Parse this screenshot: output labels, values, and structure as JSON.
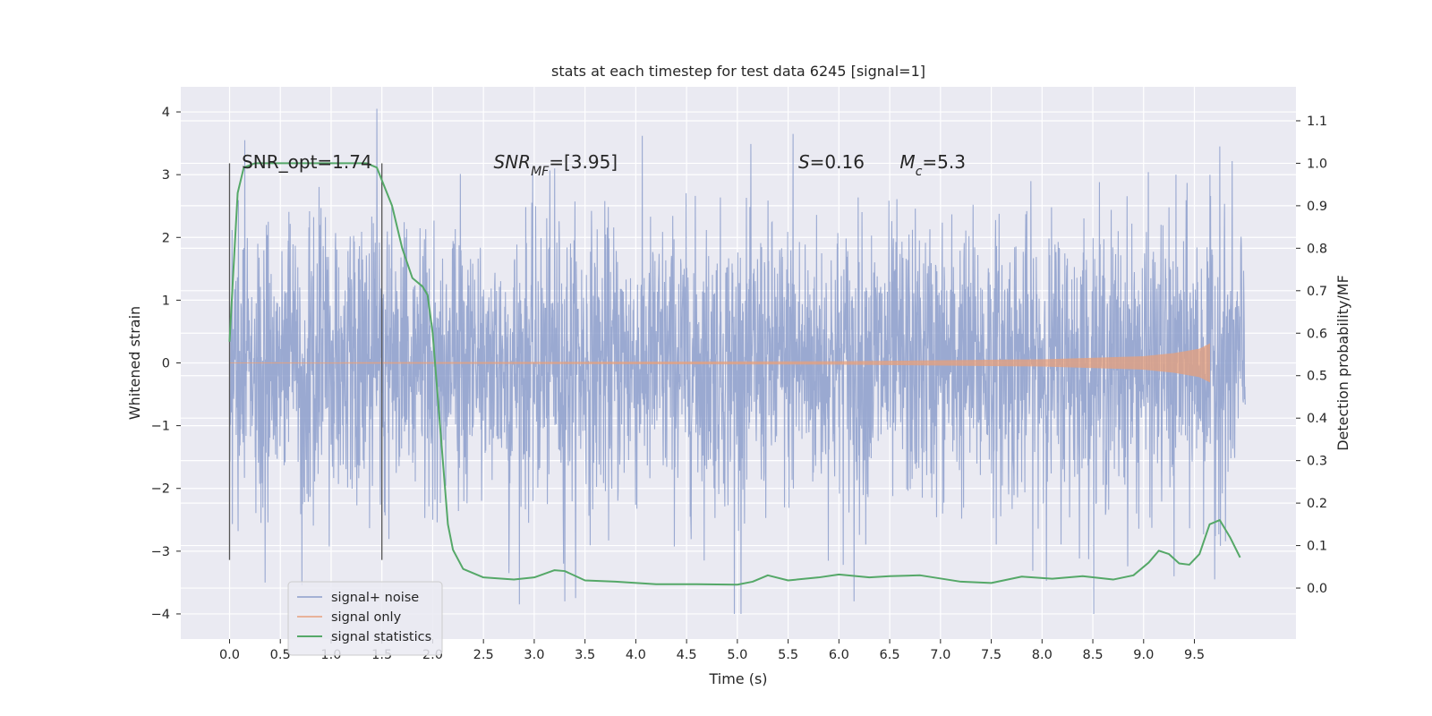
{
  "chart_data": {
    "type": "line",
    "title": "stats at each timestep for test data 6245 [signal=1]",
    "xlabel": "Time (s)",
    "ylabel": "Whitened strain",
    "y2label": "Detection probability/MF",
    "xlim": [
      -0.48,
      10.5
    ],
    "ylim": [
      -4.4,
      4.4
    ],
    "y2lim": [
      -0.12,
      1.18
    ],
    "x_ticks": [
      0.0,
      0.5,
      1.0,
      1.5,
      2.0,
      2.5,
      3.0,
      3.5,
      4.0,
      4.5,
      5.0,
      5.5,
      6.0,
      6.5,
      7.0,
      7.5,
      8.0,
      8.5,
      9.0,
      9.5
    ],
    "x_tick_labels": [
      "0.0",
      "0.5",
      "1.0",
      "1.5",
      "2.0",
      "2.5",
      "3.0",
      "3.5",
      "4.0",
      "4.5",
      "5.0",
      "5.5",
      "6.0",
      "6.5",
      "7.0",
      "7.5",
      "8.0",
      "8.5",
      "9.0",
      "9.5"
    ],
    "y_ticks": [
      4,
      3,
      2,
      1,
      0,
      -1,
      -2,
      -3,
      -4
    ],
    "y_tick_labels": [
      "4",
      "3",
      "2",
      "1",
      "0",
      "−1",
      "−2",
      "−3",
      "−4"
    ],
    "y2_ticks": [
      1.1,
      1.0,
      0.9,
      0.8,
      0.7,
      0.6,
      0.5,
      0.4,
      0.3,
      0.2,
      0.1,
      0.0
    ],
    "y2_tick_labels": [
      "1.1",
      "1.0",
      "0.9",
      "0.8",
      "0.7",
      "0.6",
      "0.5",
      "0.4",
      "0.3",
      "0.2",
      "0.1",
      "0.0"
    ],
    "grid": true,
    "legend_position": "bottom-left",
    "vertical_lines": [
      0.0,
      1.5
    ],
    "series": [
      {
        "name": "signal+ noise",
        "axis": "left",
        "color": "#8c9ecb",
        "description_values": {
          "x_start": 0.0,
          "x_end": 10.0,
          "typical_amplitude": 1.3,
          "extreme_range": [
            -4.0,
            4.1
          ]
        },
        "notable_peaks": [
          [
            0.15,
            3.55
          ],
          [
            0.35,
            -3.5
          ],
          [
            1.45,
            4.05
          ],
          [
            2.0,
            -2.5
          ],
          [
            2.75,
            -3.35
          ],
          [
            3.3,
            -3.8
          ],
          [
            3.2,
            3.1
          ],
          [
            4.97,
            -4.0
          ],
          [
            5.55,
            3.65
          ],
          [
            6.15,
            -3.8
          ],
          [
            9.3,
            -3.4
          ],
          [
            9.75,
            3.45
          ],
          [
            9.7,
            -3.45
          ]
        ]
      },
      {
        "name": "signal only",
        "axis": "left",
        "color": "#e7a07c",
        "points": [
          [
            0.0,
            0.0
          ],
          [
            6.0,
            0.02
          ],
          [
            8.0,
            0.05
          ],
          [
            9.0,
            0.1
          ],
          [
            9.3,
            0.15
          ],
          [
            9.55,
            0.22
          ],
          [
            9.65,
            0.3
          ]
        ]
      },
      {
        "name": "signal statistics",
        "axis": "right",
        "color": "#55a868",
        "points": [
          [
            0.0,
            0.58
          ],
          [
            0.05,
            0.8
          ],
          [
            0.08,
            0.93
          ],
          [
            0.14,
            0.99
          ],
          [
            0.25,
            1.0
          ],
          [
            0.6,
            1.0
          ],
          [
            1.0,
            1.0
          ],
          [
            1.35,
            1.0
          ],
          [
            1.45,
            0.99
          ],
          [
            1.5,
            0.96
          ],
          [
            1.6,
            0.9
          ],
          [
            1.7,
            0.8
          ],
          [
            1.8,
            0.73
          ],
          [
            1.9,
            0.71
          ],
          [
            1.95,
            0.69
          ],
          [
            2.0,
            0.6
          ],
          [
            2.05,
            0.45
          ],
          [
            2.1,
            0.3
          ],
          [
            2.15,
            0.15
          ],
          [
            2.2,
            0.09
          ],
          [
            2.3,
            0.045
          ],
          [
            2.5,
            0.025
          ],
          [
            2.8,
            0.02
          ],
          [
            3.0,
            0.025
          ],
          [
            3.2,
            0.042
          ],
          [
            3.3,
            0.04
          ],
          [
            3.5,
            0.018
          ],
          [
            3.8,
            0.015
          ],
          [
            4.2,
            0.009
          ],
          [
            4.6,
            0.009
          ],
          [
            5.0,
            0.008
          ],
          [
            5.15,
            0.015
          ],
          [
            5.3,
            0.03
          ],
          [
            5.5,
            0.018
          ],
          [
            5.8,
            0.025
          ],
          [
            6.0,
            0.032
          ],
          [
            6.3,
            0.025
          ],
          [
            6.5,
            0.028
          ],
          [
            6.8,
            0.03
          ],
          [
            7.2,
            0.015
          ],
          [
            7.5,
            0.012
          ],
          [
            7.8,
            0.027
          ],
          [
            8.1,
            0.022
          ],
          [
            8.4,
            0.028
          ],
          [
            8.7,
            0.02
          ],
          [
            8.9,
            0.03
          ],
          [
            9.05,
            0.06
          ],
          [
            9.15,
            0.088
          ],
          [
            9.25,
            0.08
          ],
          [
            9.35,
            0.058
          ],
          [
            9.45,
            0.055
          ],
          [
            9.55,
            0.08
          ],
          [
            9.65,
            0.15
          ],
          [
            9.75,
            0.16
          ],
          [
            9.85,
            0.12
          ],
          [
            9.95,
            0.072
          ]
        ]
      }
    ],
    "annotations": [
      {
        "x": 0.12,
        "y": 3.1,
        "parts": [
          {
            "t": "SNR_opt=1.74",
            "sub": false
          }
        ]
      },
      {
        "x": 2.6,
        "y": 3.1,
        "parts": [
          {
            "t": "SNR",
            "i": true
          },
          {
            "t": "MF",
            "i": true,
            "sub": true
          },
          {
            "t": "=[3.95]"
          }
        ]
      },
      {
        "x": 5.6,
        "y": 3.1,
        "parts": [
          {
            "t": "S",
            "i": true
          },
          {
            "t": "=0.16"
          }
        ]
      },
      {
        "x": 6.6,
        "y": 3.1,
        "parts": [
          {
            "t": "M",
            "i": true
          },
          {
            "t": "c",
            "i": true,
            "sub": true
          },
          {
            "t": "=5.3"
          }
        ]
      }
    ]
  }
}
